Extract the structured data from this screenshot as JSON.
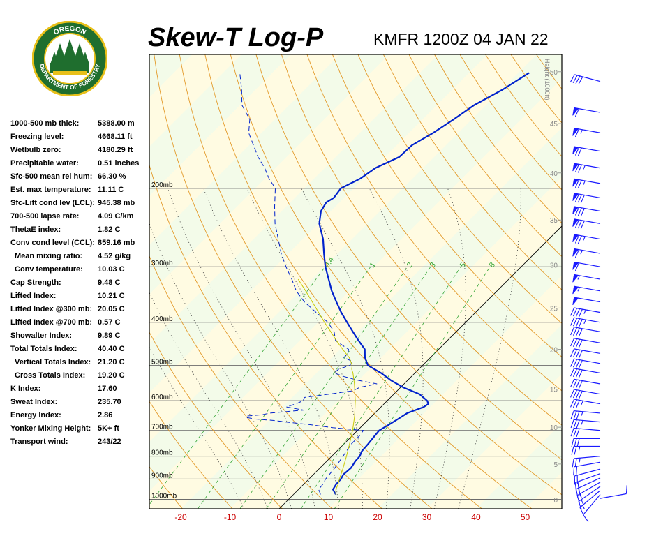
{
  "header": {
    "title": "Skew-T Log-P",
    "station": "KMFR 1200Z 04 JAN 22"
  },
  "logo": {
    "top_text": "OREGON",
    "bottom_text": "DEPARTMENT OF FORESTRY",
    "ring_color": "#1f6e2e",
    "accent_color": "#e8c01a"
  },
  "indices": [
    {
      "label": "1000-500 mb thick:",
      "value": "5388.00 m",
      "indent": false
    },
    {
      "label": "Freezing level:",
      "value": "4668.11 ft",
      "indent": false
    },
    {
      "label": "Wetbulb zero:",
      "value": "4180.29 ft",
      "indent": false
    },
    {
      "label": "Precipitable water:",
      "value": "0.51 inches",
      "indent": false
    },
    {
      "label": "Sfc-500 mean rel hum:",
      "value": "66.30 %",
      "indent": false
    },
    {
      "label": "Est. max temperature:",
      "value": "11.11 C",
      "indent": false
    },
    {
      "label": "Sfc-Lift cond lev (LCL):",
      "value": "945.38 mb",
      "indent": false
    },
    {
      "label": "700-500 lapse rate:",
      "value": "4.09 C/km",
      "indent": false
    },
    {
      "label": "ThetaE index:",
      "value": "1.82 C",
      "indent": false
    },
    {
      "label": "Conv cond level (CCL):",
      "value": "859.16 mb",
      "indent": false
    },
    {
      "label": "Mean mixing ratio:",
      "value": "4.52 g/kg",
      "indent": true
    },
    {
      "label": "Conv temperature:",
      "value": "10.03 C",
      "indent": true
    },
    {
      "label": "Cap Strength:",
      "value": "9.48 C",
      "indent": false
    },
    {
      "label": "Lifted Index:",
      "value": "10.21 C",
      "indent": false
    },
    {
      "label": "Lifted Index @300 mb:",
      "value": "20.05 C",
      "indent": false
    },
    {
      "label": "Lifted Index @700 mb:",
      "value": "0.57 C",
      "indent": false
    },
    {
      "label": "Showalter Index:",
      "value": "9.89 C",
      "indent": false
    },
    {
      "label": "Total Totals Index:",
      "value": "40.40 C",
      "indent": false
    },
    {
      "label": "Vertical Totals Index:",
      "value": "21.20 C",
      "indent": true
    },
    {
      "label": "Cross Totals Index:",
      "value": "19.20 C",
      "indent": true
    },
    {
      "label": "K Index:",
      "value": "17.60",
      "indent": false
    },
    {
      "label": "Sweat Index:",
      "value": "235.70",
      "indent": false
    },
    {
      "label": "Energy Index:",
      "value": "2.86",
      "indent": false
    },
    {
      "label": "Yonker Mixing Height:",
      "value": "5K+ ft",
      "indent": false
    },
    {
      "label": "Transport wind:",
      "value": "243/22",
      "indent": false
    }
  ],
  "chart_data": {
    "type": "line",
    "xlim": [
      -28,
      56
    ],
    "ylim_hpa": [
      1050,
      100
    ],
    "pressure_levels": [
      {
        "p": 1000,
        "label": "1000mb"
      },
      {
        "p": 900,
        "label": "900mb"
      },
      {
        "p": 800,
        "label": "800mb"
      },
      {
        "p": 700,
        "label": "700mb"
      },
      {
        "p": 600,
        "label": "600mb"
      },
      {
        "p": 500,
        "label": "500mb"
      },
      {
        "p": 400,
        "label": "400mb"
      },
      {
        "p": 300,
        "label": "300mb"
      },
      {
        "p": 200,
        "label": "200mb"
      }
    ],
    "x_ticks": [
      -20,
      -10,
      0,
      10,
      20,
      30,
      40,
      50
    ],
    "x_tick_labels": [
      "-20",
      "-10",
      "0",
      "10",
      "20",
      "30",
      "40",
      "50"
    ],
    "isotherm_step": 10,
    "dry_adiabat_thetas": [
      240,
      250,
      260,
      270,
      280,
      290,
      300,
      310,
      320,
      330,
      340,
      350,
      360,
      370,
      380,
      390,
      400,
      410,
      420,
      430,
      440,
      450,
      460
    ],
    "moist_adiabat_thetaw": [
      -10,
      -5,
      0,
      5,
      10,
      15,
      20,
      25,
      30,
      35
    ],
    "mixing_ratios": [
      {
        "w": 0.4,
        "label": "0.4"
      },
      {
        "w": 1,
        "label": "1"
      },
      {
        "w": 2,
        "label": "2"
      },
      {
        "w": 3,
        "label": "3"
      },
      {
        "w": 5,
        "label": "5"
      },
      {
        "w": 8,
        "label": "8"
      }
    ],
    "height_axis": {
      "title": "Height (1000ft)",
      "ticks": [
        0,
        5,
        10,
        15,
        20,
        25,
        30,
        35,
        40,
        45,
        50
      ]
    },
    "series": [
      {
        "role": "temperature",
        "color": "#0022cc",
        "points": [
          [
            975,
            8.6
          ],
          [
            950,
            7.0
          ],
          [
            925,
            6.6
          ],
          [
            900,
            6.5
          ],
          [
            880,
            6.1
          ],
          [
            850,
            6.3
          ],
          [
            820,
            5.8
          ],
          [
            800,
            5.7
          ],
          [
            780,
            5.1
          ],
          [
            750,
            4.9
          ],
          [
            720,
            4.6
          ],
          [
            700,
            4.4
          ],
          [
            680,
            5.2
          ],
          [
            660,
            5.9
          ],
          [
            640,
            6.6
          ],
          [
            620,
            8.7
          ],
          [
            610,
            9.0
          ],
          [
            600,
            8.1
          ],
          [
            580,
            5.2
          ],
          [
            560,
            0.5
          ],
          [
            540,
            -3.4
          ],
          [
            520,
            -6.9
          ],
          [
            500,
            -11.1
          ],
          [
            480,
            -13.3
          ],
          [
            460,
            -15.0
          ],
          [
            440,
            -18.0
          ],
          [
            420,
            -21.0
          ],
          [
            400,
            -24.1
          ],
          [
            380,
            -27.3
          ],
          [
            360,
            -30.4
          ],
          [
            340,
            -33.6
          ],
          [
            320,
            -36.6
          ],
          [
            300,
            -39.8
          ],
          [
            280,
            -42.8
          ],
          [
            260,
            -45.9
          ],
          [
            240,
            -49.8
          ],
          [
            225,
            -52.0
          ],
          [
            215,
            -52.7
          ],
          [
            210,
            -52.1
          ],
          [
            200,
            -52.6
          ],
          [
            190,
            -50.6
          ],
          [
            180,
            -49.7
          ],
          [
            170,
            -47.1
          ],
          [
            160,
            -46.9
          ],
          [
            150,
            -45.1
          ],
          [
            140,
            -43.7
          ],
          [
            130,
            -42.4
          ],
          [
            120,
            -39.8
          ],
          [
            110,
            -37.8
          ]
        ]
      },
      {
        "role": "dewpoint",
        "color": "#0022cc",
        "points": [
          [
            975,
            5.5
          ],
          [
            950,
            4.1
          ],
          [
            925,
            3.9
          ],
          [
            900,
            3.4
          ],
          [
            850,
            3.0
          ],
          [
            800,
            2.3
          ],
          [
            750,
            1.5
          ],
          [
            720,
            1.5
          ],
          [
            700,
            1.2
          ],
          [
            690,
            -5.6
          ],
          [
            680,
            -10.5
          ],
          [
            670,
            -16.4
          ],
          [
            665,
            -19.0
          ],
          [
            660,
            -23.0
          ],
          [
            655,
            -25.1
          ],
          [
            650,
            -25.5
          ],
          [
            645,
            -22.5
          ],
          [
            640,
            -21.3
          ],
          [
            630,
            -15.1
          ],
          [
            620,
            -19.2
          ],
          [
            610,
            -17.9
          ],
          [
            600,
            -17.1
          ],
          [
            590,
            -17.5
          ],
          [
            580,
            -13.1
          ],
          [
            570,
            -9.0
          ],
          [
            560,
            -8.3
          ],
          [
            550,
            -5.5
          ],
          [
            540,
            -10.1
          ],
          [
            530,
            -13.6
          ],
          [
            520,
            -16.4
          ],
          [
            510,
            -16.3
          ],
          [
            500,
            -14.8
          ],
          [
            490,
            -15.0
          ],
          [
            480,
            -17.6
          ],
          [
            470,
            -17.6
          ],
          [
            460,
            -18.3
          ],
          [
            440,
            -22.7
          ],
          [
            420,
            -24.8
          ],
          [
            400,
            -28.0
          ],
          [
            380,
            -32.4
          ],
          [
            360,
            -36.9
          ],
          [
            340,
            -40.8
          ],
          [
            320,
            -44.1
          ],
          [
            300,
            -47.8
          ],
          [
            280,
            -51.5
          ],
          [
            260,
            -55.0
          ],
          [
            240,
            -58.8
          ],
          [
            220,
            -62.3
          ],
          [
            200,
            -65.9
          ],
          [
            190,
            -69.2
          ],
          [
            180,
            -72.2
          ],
          [
            170,
            -75.8
          ],
          [
            160,
            -79.1
          ],
          [
            150,
            -82.6
          ],
          [
            140,
            -85.1
          ],
          [
            130,
            -89.6
          ],
          [
            120,
            -92.8
          ],
          [
            110,
            -96.6
          ]
        ]
      },
      {
        "role": "parcel",
        "color": "#c8c800",
        "points": [
          [
            975,
            8.6
          ],
          [
            950,
            7.6
          ],
          [
            925,
            7.0
          ],
          [
            900,
            6.2
          ],
          [
            850,
            4.7
          ],
          [
            800,
            3.0
          ],
          [
            750,
            1.1
          ],
          [
            700,
            -1.0
          ],
          [
            650,
            -3.5
          ],
          [
            600,
            -6.5
          ],
          [
            550,
            -10.1
          ],
          [
            520,
            -12.6
          ],
          [
            510,
            -13.6
          ],
          [
            500,
            -14.3
          ],
          [
            480,
            -16.5
          ],
          [
            460,
            -19.5
          ],
          [
            440,
            -22.5
          ],
          [
            420,
            -25.5
          ],
          [
            400,
            -28.7
          ],
          [
            380,
            -31.9
          ],
          [
            360,
            -35.3
          ],
          [
            340,
            -38.9
          ],
          [
            320,
            -42.8
          ]
        ]
      }
    ],
    "wind_barbs": [
      {
        "p": 995,
        "kts": 10,
        "dir": 80
      },
      {
        "p": 975,
        "kts": 10,
        "dir": 220
      },
      {
        "p": 955,
        "kts": 15,
        "dir": 230
      },
      {
        "p": 935,
        "kts": 15,
        "dir": 235
      },
      {
        "p": 915,
        "kts": 15,
        "dir": 240
      },
      {
        "p": 895,
        "kts": 20,
        "dir": 245
      },
      {
        "p": 875,
        "kts": 20,
        "dir": 250
      },
      {
        "p": 855,
        "kts": 20,
        "dir": 255
      },
      {
        "p": 825,
        "kts": 20,
        "dir": 260
      },
      {
        "p": 800,
        "kts": 25,
        "dir": 265
      },
      {
        "p": 760,
        "kts": 25,
        "dir": 270
      },
      {
        "p": 730,
        "kts": 30,
        "dir": 270
      },
      {
        "p": 700,
        "kts": 30,
        "dir": 275
      },
      {
        "p": 670,
        "kts": 35,
        "dir": 275
      },
      {
        "p": 640,
        "kts": 35,
        "dir": 275
      },
      {
        "p": 610,
        "kts": 35,
        "dir": 280
      },
      {
        "p": 580,
        "kts": 40,
        "dir": 280
      },
      {
        "p": 550,
        "kts": 40,
        "dir": 280
      },
      {
        "p": 520,
        "kts": 40,
        "dir": 280
      },
      {
        "p": 495,
        "kts": 40,
        "dir": 280
      },
      {
        "p": 470,
        "kts": 40,
        "dir": 280
      },
      {
        "p": 445,
        "kts": 40,
        "dir": 280
      },
      {
        "p": 420,
        "kts": 40,
        "dir": 280
      },
      {
        "p": 400,
        "kts": 45,
        "dir": 280
      },
      {
        "p": 380,
        "kts": 45,
        "dir": 280
      },
      {
        "p": 360,
        "kts": 50,
        "dir": 280
      },
      {
        "p": 340,
        "kts": 55,
        "dir": 280
      },
      {
        "p": 320,
        "kts": 55,
        "dir": 280
      },
      {
        "p": 300,
        "kts": 60,
        "dir": 280
      },
      {
        "p": 280,
        "kts": 65,
        "dir": 280
      },
      {
        "p": 260,
        "kts": 75,
        "dir": 280
      },
      {
        "p": 240,
        "kts": 80,
        "dir": 280
      },
      {
        "p": 225,
        "kts": 80,
        "dir": 280
      },
      {
        "p": 210,
        "kts": 80,
        "dir": 280
      },
      {
        "p": 195,
        "kts": 75,
        "dir": 280
      },
      {
        "p": 180,
        "kts": 75,
        "dir": 280
      },
      {
        "p": 165,
        "kts": 70,
        "dir": 280
      },
      {
        "p": 150,
        "kts": 65,
        "dir": 280
      },
      {
        "p": 135,
        "kts": 60,
        "dir": 280
      },
      {
        "p": 115,
        "kts": 40,
        "dir": 285
      }
    ]
  }
}
